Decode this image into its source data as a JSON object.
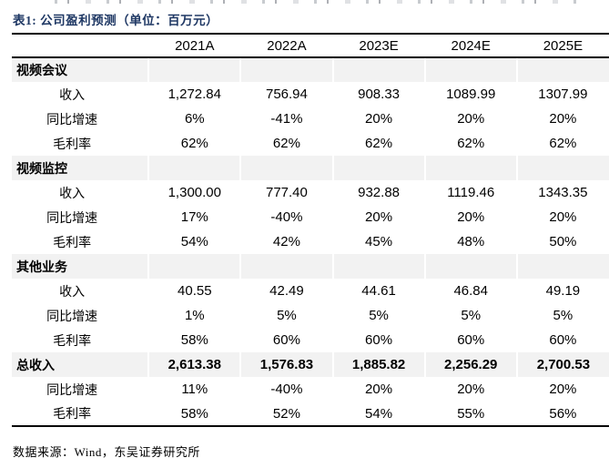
{
  "title": "表1:  公司盈利预测（单位：百万元）",
  "source_note": "数据来源：Wind，东吴证券研究所",
  "colors": {
    "title_navy": "#1F3864",
    "section_row_bg": "#F2F2F2",
    "border_black": "#000000"
  },
  "table": {
    "columns": [
      "2021A",
      "2022A",
      "2023E",
      "2024E",
      "2025E"
    ],
    "sections": [
      {
        "name": "视频会议",
        "rows": [
          {
            "label": "收入",
            "values": [
              "1,272.84",
              "756.94",
              "908.33",
              "1089.99",
              "1307.99"
            ]
          },
          {
            "label": "同比增速",
            "values": [
              "6%",
              "-41%",
              "20%",
              "20%",
              "20%"
            ]
          },
          {
            "label": "毛利率",
            "values": [
              "62%",
              "62%",
              "62%",
              "62%",
              "62%"
            ]
          }
        ]
      },
      {
        "name": "视频监控",
        "rows": [
          {
            "label": "收入",
            "values": [
              "1,300.00",
              "777.40",
              "932.88",
              "1119.46",
              "1343.35"
            ]
          },
          {
            "label": "同比增速",
            "values": [
              "17%",
              "-40%",
              "20%",
              "20%",
              "20%"
            ]
          },
          {
            "label": "毛利率",
            "values": [
              "54%",
              "42%",
              "45%",
              "48%",
              "50%"
            ]
          }
        ]
      },
      {
        "name": "其他业务",
        "rows": [
          {
            "label": "收入",
            "values": [
              "40.55",
              "42.49",
              "44.61",
              "46.84",
              "49.19"
            ]
          },
          {
            "label": "同比增速",
            "values": [
              "1%",
              "5%",
              "5%",
              "5%",
              "5%"
            ]
          },
          {
            "label": "毛利率",
            "values": [
              "58%",
              "60%",
              "60%",
              "60%",
              "60%"
            ]
          }
        ]
      },
      {
        "name": "总收入",
        "values": [
          "2,613.38",
          "1,576.83",
          "1,885.82",
          "2,256.29",
          "2,700.53"
        ],
        "rows": [
          {
            "label": "同比增速",
            "values": [
              "11%",
              "-40%",
              "20%",
              "20%",
              "20%"
            ]
          },
          {
            "label": "毛利率",
            "values": [
              "58%",
              "52%",
              "54%",
              "55%",
              "56%"
            ]
          }
        ]
      }
    ]
  }
}
